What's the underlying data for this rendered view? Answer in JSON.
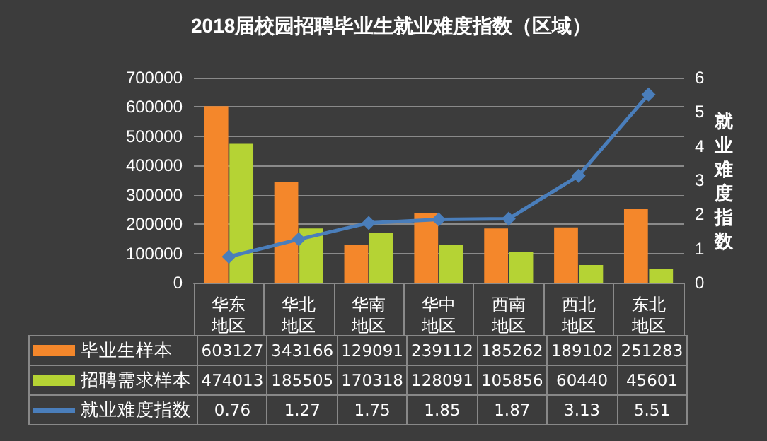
{
  "chart_data": {
    "type": "bar",
    "title": "2018届校园招聘毕业生就业难度指数（区域）",
    "y2label": "就业难度指数",
    "categories": [
      "华东地区",
      "华北地区",
      "华南地区",
      "华中地区",
      "西南地区",
      "西北地区",
      "东北地区"
    ],
    "series": [
      {
        "name": "毕业生样本",
        "color": "#f4872b",
        "values": [
          603127,
          343166,
          129091,
          239112,
          185262,
          189102,
          251283
        ]
      },
      {
        "name": "招聘需求样本",
        "color": "#b5d334",
        "values": [
          474013,
          185505,
          170318,
          128091,
          105856,
          60440,
          45601
        ]
      },
      {
        "name": "就业难度指数",
        "type": "line",
        "axis": "y2",
        "color": "#4a7ebb",
        "marker": "diamond",
        "values": [
          0.76,
          1.27,
          1.75,
          1.85,
          1.87,
          3.13,
          5.51
        ]
      }
    ],
    "ylim": [
      0,
      700000
    ],
    "yticks": [
      0,
      100000,
      200000,
      300000,
      400000,
      500000,
      600000,
      700000
    ],
    "y2lim": [
      0,
      6
    ],
    "y2ticks": [
      0,
      1,
      2,
      3,
      4,
      5,
      6
    ],
    "grid": "y",
    "legend": "bottom",
    "data_labels": true
  }
}
